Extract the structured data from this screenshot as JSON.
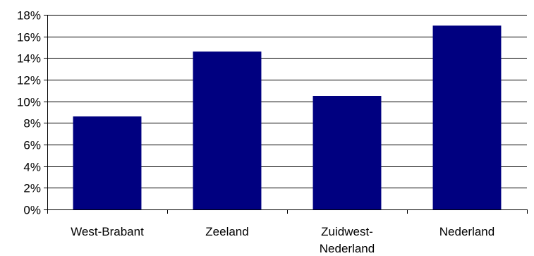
{
  "chart_data": {
    "type": "bar",
    "categories": [
      "West-Brabant",
      "Zeeland",
      "Zuidwest-Nederland",
      "Nederland"
    ],
    "category_labels": [
      [
        "West-Brabant"
      ],
      [
        "Zeeland"
      ],
      [
        "Zuidwest-",
        "Nederland"
      ],
      [
        "Nederland"
      ]
    ],
    "values": [
      8.6,
      14.6,
      10.5,
      17.0
    ],
    "ylim": [
      0,
      18
    ],
    "yticks": [
      0,
      2,
      4,
      6,
      8,
      10,
      12,
      14,
      16,
      18
    ],
    "ytick_labels": [
      "0%",
      "2%",
      "4%",
      "6%",
      "8%",
      "10%",
      "12%",
      "14%",
      "16%",
      "18%"
    ],
    "grid": true,
    "legend": "none",
    "title": "",
    "xlabel": "",
    "ylabel": "",
    "colors": {
      "bar": "#000080",
      "grid": "#000000",
      "axis": "#000000"
    }
  }
}
